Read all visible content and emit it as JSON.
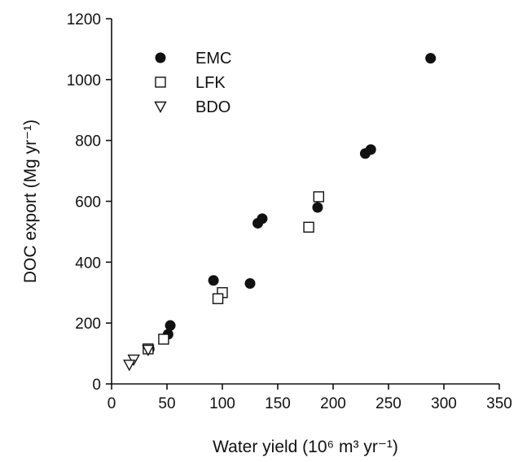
{
  "chart_data": {
    "type": "scatter",
    "title": "",
    "xlabel": "Water yield (10⁶ m³ yr⁻¹)",
    "ylabel": "DOC export (Mg yr⁻¹)",
    "xlim": [
      0,
      350
    ],
    "ylim": [
      0,
      1200
    ],
    "xticks": [
      0,
      50,
      100,
      150,
      200,
      250,
      300,
      350
    ],
    "yticks": [
      0,
      200,
      400,
      600,
      800,
      1000,
      1200
    ],
    "grid": false,
    "legend_position": "top-left",
    "series": [
      {
        "name": "EMC",
        "marker": "filled-circle",
        "color": "#111111",
        "x": [
          288,
          234,
          229,
          186,
          136,
          132,
          125,
          92,
          53,
          51,
          34
        ],
        "y": [
          1070,
          770,
          757,
          580,
          543,
          528,
          330,
          340,
          192,
          163,
          115
        ]
      },
      {
        "name": "LFK",
        "marker": "open-square",
        "color": "#111111",
        "x": [
          187,
          178,
          100,
          96,
          47,
          33
        ],
        "y": [
          615,
          515,
          300,
          280,
          147,
          115
        ]
      },
      {
        "name": "BDO",
        "marker": "open-triangle-down",
        "color": "#111111",
        "x": [
          33,
          20,
          16
        ],
        "y": [
          112,
          80,
          63
        ]
      }
    ]
  }
}
